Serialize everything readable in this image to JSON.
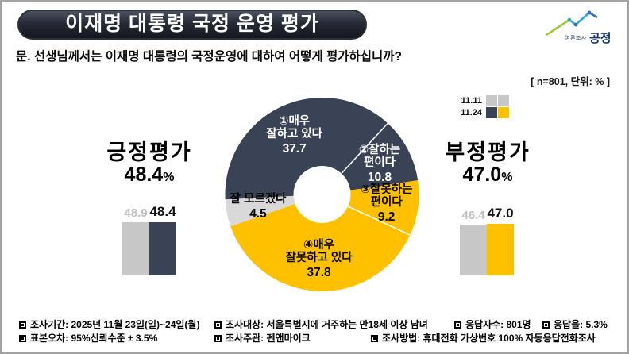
{
  "header": {
    "title": "이재명 대통령 국정 운영 평가",
    "question": "문. 선생님께서는 이재명 대통령의 국정운영에 대하여 어떻게 평가하십니까?",
    "sample_note": "[ n=801, 단위: % ]",
    "logo": {
      "small_text": "여론조사",
      "large_text": "공정"
    }
  },
  "legend": {
    "rows": [
      {
        "label": "11.11",
        "colors": [
          "#c7c7c7",
          "#c7c7c7"
        ]
      },
      {
        "label": "11.24",
        "colors": [
          "#3a4356",
          "#ffc000"
        ]
      }
    ]
  },
  "panels": {
    "positive": {
      "title": "긍정평가",
      "value_text": "48.4",
      "unit": "%",
      "prev_text": "48.9",
      "cur_text": "48.4"
    },
    "negative": {
      "title": "부정평가",
      "value_text": "47.0",
      "unit": "%",
      "prev_text": "46.4",
      "cur_text": "47.0"
    }
  },
  "chart_data": {
    "type": "pie",
    "title": "이재명 대통령 국정 운영 평가",
    "unit": "%",
    "n": 801,
    "donut": {
      "start_angle_deg": 267,
      "segments": [
        {
          "label": "①매우 잘하고 있다",
          "lines": [
            "①매우",
            "잘하고 있다"
          ],
          "value": 37.7,
          "value_text": "37.7",
          "color": "#3a4356",
          "text_color": "#ffffff"
        },
        {
          "label": "②잘하는 편이다",
          "lines": [
            "②잘하는",
            "편이다"
          ],
          "value": 10.8,
          "value_text": "10.8",
          "color": "#3a4356",
          "text_color": "#ffffff"
        },
        {
          "label": "③잘못하는 편이다",
          "lines": [
            "③잘못하는",
            "편이다"
          ],
          "value": 9.2,
          "value_text": "9.2",
          "color": "#ffc000",
          "text_color": "#000000"
        },
        {
          "label": "④매우 잘못하고 있다",
          "lines": [
            "④매우",
            "잘못하고 있다"
          ],
          "value": 37.8,
          "value_text": "37.8",
          "color": "#ffc000",
          "text_color": "#000000"
        },
        {
          "label": "잘 모르겠다",
          "lines": [
            "잘 모르겠다"
          ],
          "value": 4.5,
          "value_text": "4.5",
          "color": "#d9d9d9",
          "text_color": "#000000"
        }
      ]
    },
    "comparison_bars": {
      "dates": [
        "11.11",
        "11.24"
      ],
      "positive": {
        "title": "긍정평가",
        "previous": 48.9,
        "current": 48.4,
        "colors": {
          "previous": "#c7c7c7",
          "current": "#3a4356"
        }
      },
      "negative": {
        "title": "부정평가",
        "previous": 46.4,
        "current": 47.0,
        "colors": {
          "previous": "#c7c7c7",
          "current": "#ffc000"
        }
      }
    }
  },
  "footer": {
    "line1": [
      "조사기간: 2025년 11월 23일(일)~24일(월)",
      "조사대상: 서울특별시에 거주하는 만18세 이상 남녀",
      "응답자수: 801명",
      "응답율: 5.3%"
    ],
    "line2": [
      "표본오차: 95%신뢰수준 ± 3.5%",
      "조사주관: 펜앤마이크",
      "조사방법: 휴대전화 가상번호 100% 자동응답전화조사"
    ]
  }
}
